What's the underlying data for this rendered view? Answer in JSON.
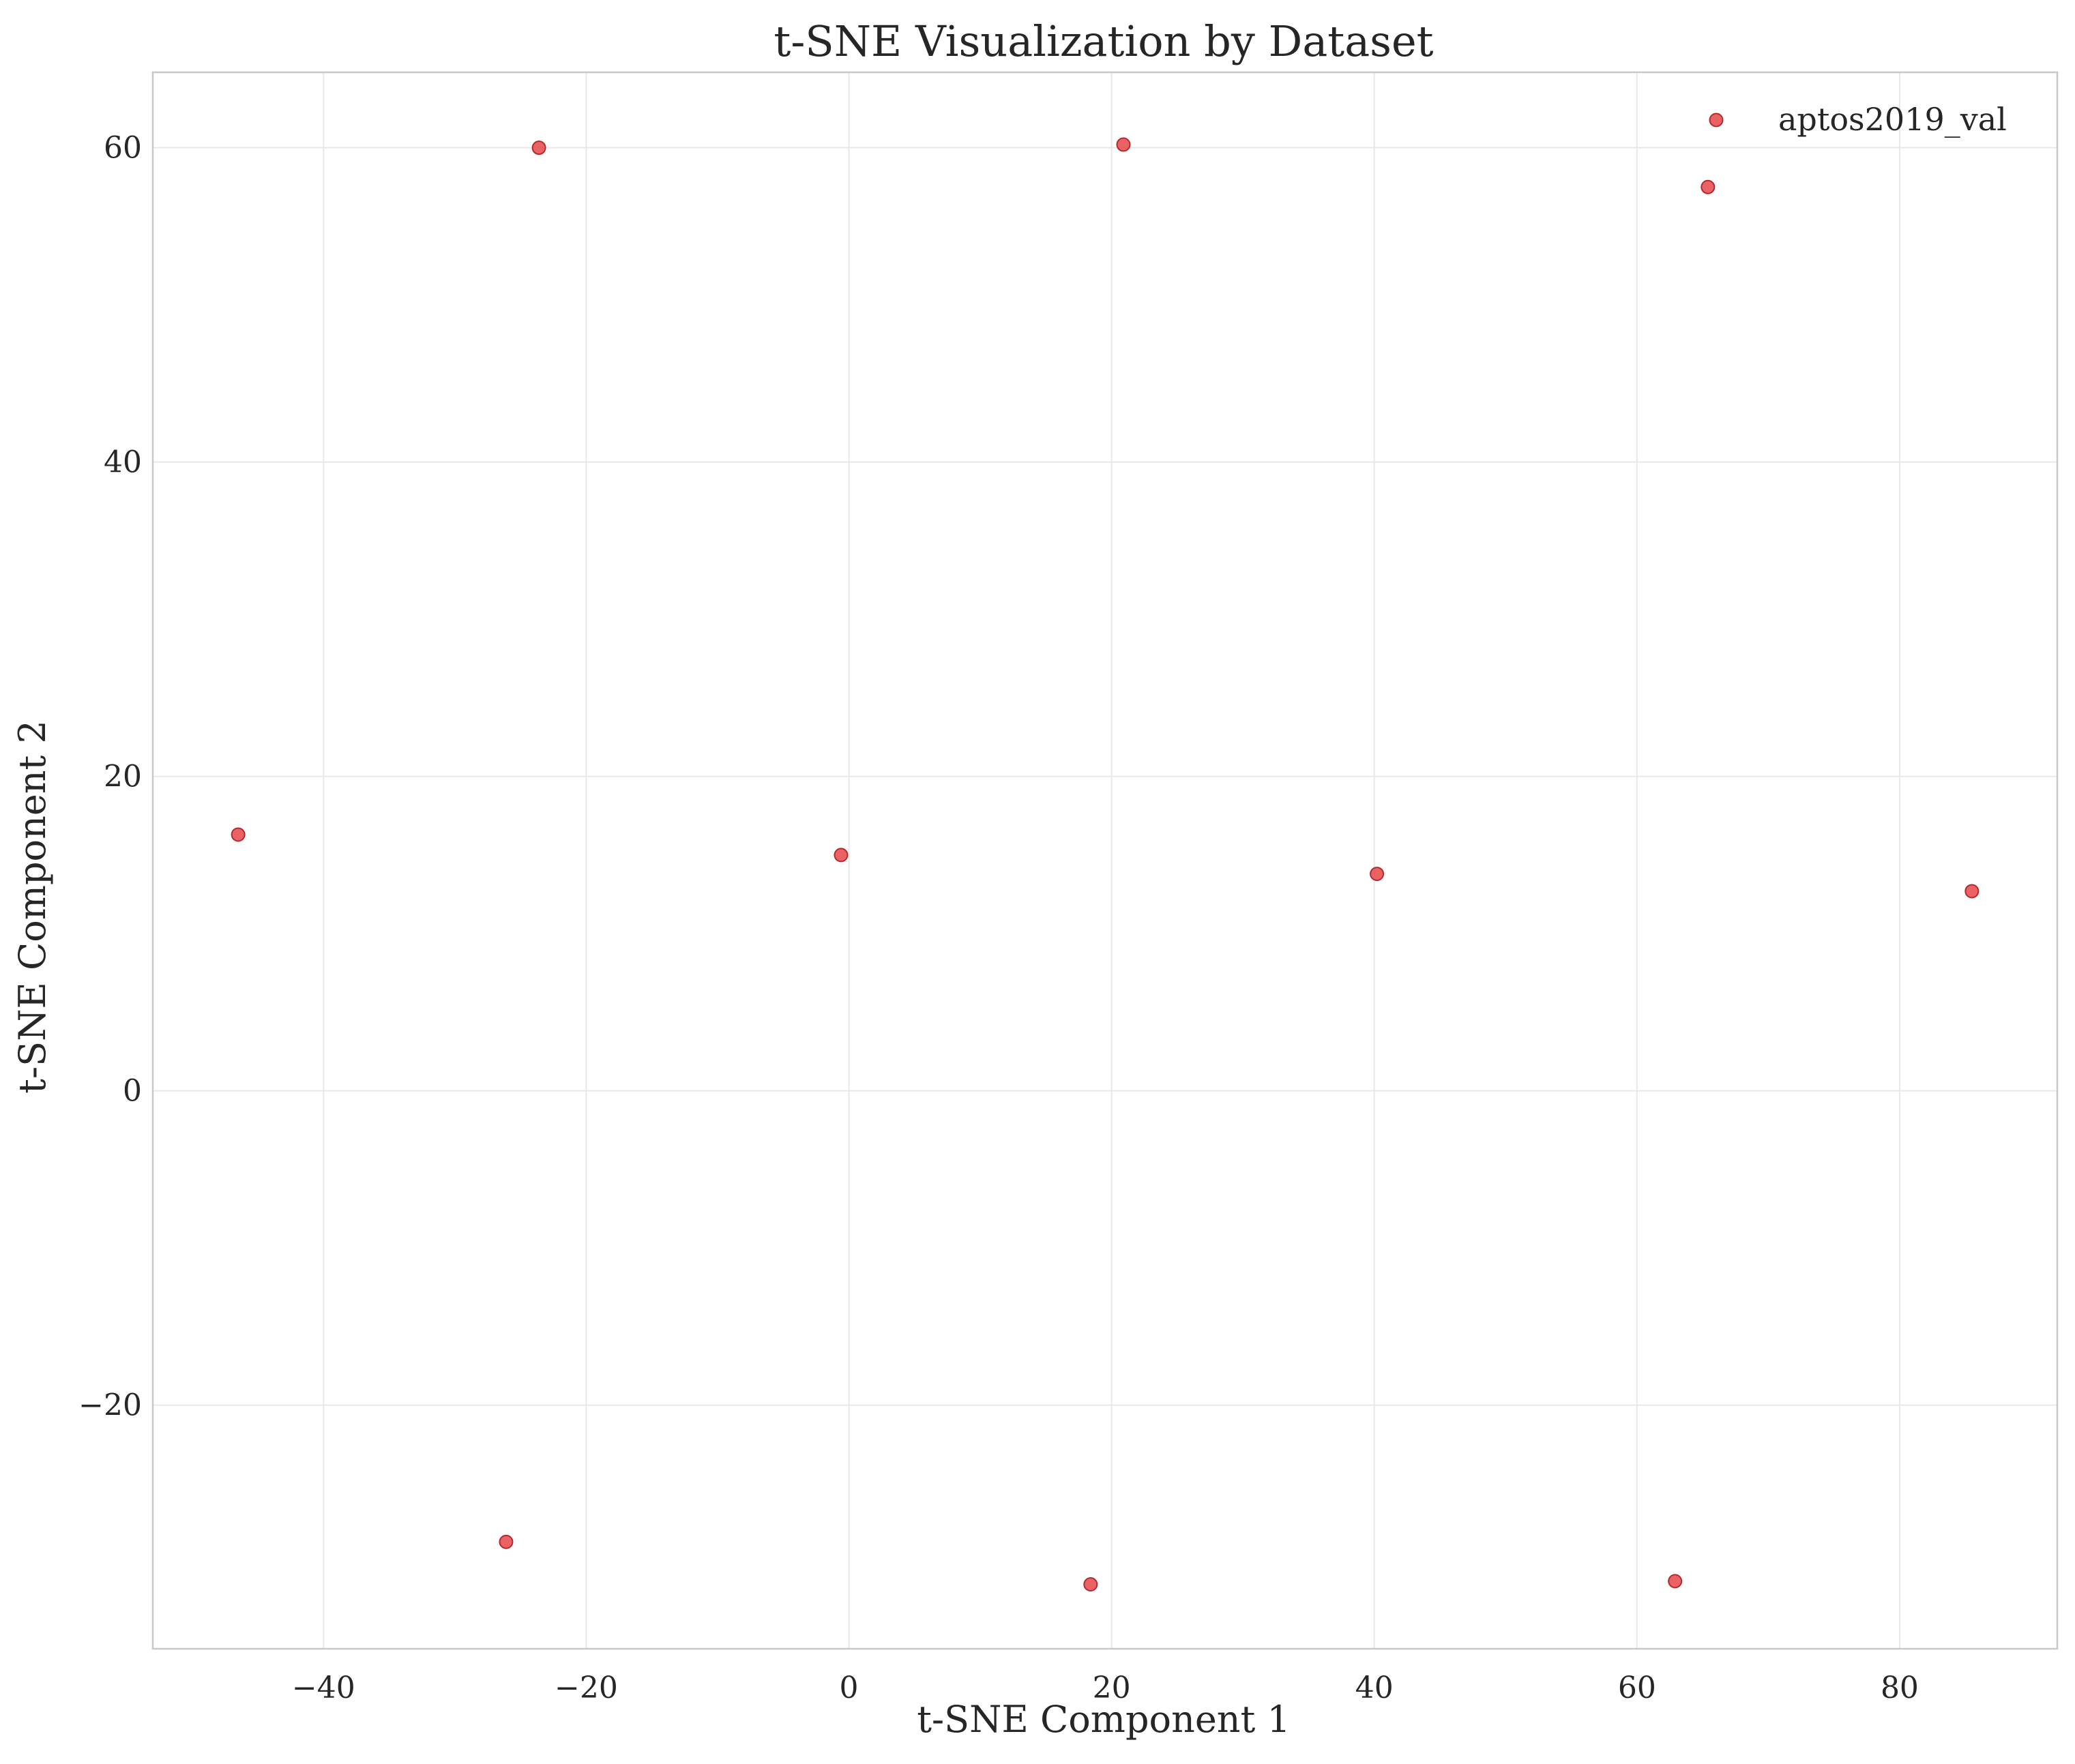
{
  "chart_data": {
    "type": "scatter",
    "title": "t-SNE Visualization by Dataset",
    "xlabel": "t-SNE Component 1",
    "ylabel": "t-SNE Component 2",
    "xlim": [
      -53,
      92
    ],
    "ylim": [
      -35.5,
      64.8
    ],
    "xticks": [
      -40,
      -20,
      0,
      20,
      40,
      60,
      80
    ],
    "yticks": [
      -20,
      0,
      20,
      40,
      60
    ],
    "xtick_labels": [
      "−40",
      "−20",
      "0",
      "20",
      "40",
      "60",
      "80"
    ],
    "ytick_labels": [
      "−20",
      "0",
      "20",
      "40",
      "60"
    ],
    "grid": true,
    "legend_position": "top-right",
    "series": [
      {
        "name": "aptos2019_val",
        "color": "#e8474a",
        "x": [
          -46.5,
          -23.6,
          20.9,
          65.4,
          -0.6,
          40.2,
          85.5,
          -26.1,
          18.4,
          62.9
        ],
        "y": [
          16.3,
          60.0,
          60.2,
          57.5,
          15.0,
          13.8,
          12.7,
          -28.7,
          -31.4,
          -31.2
        ]
      }
    ]
  }
}
